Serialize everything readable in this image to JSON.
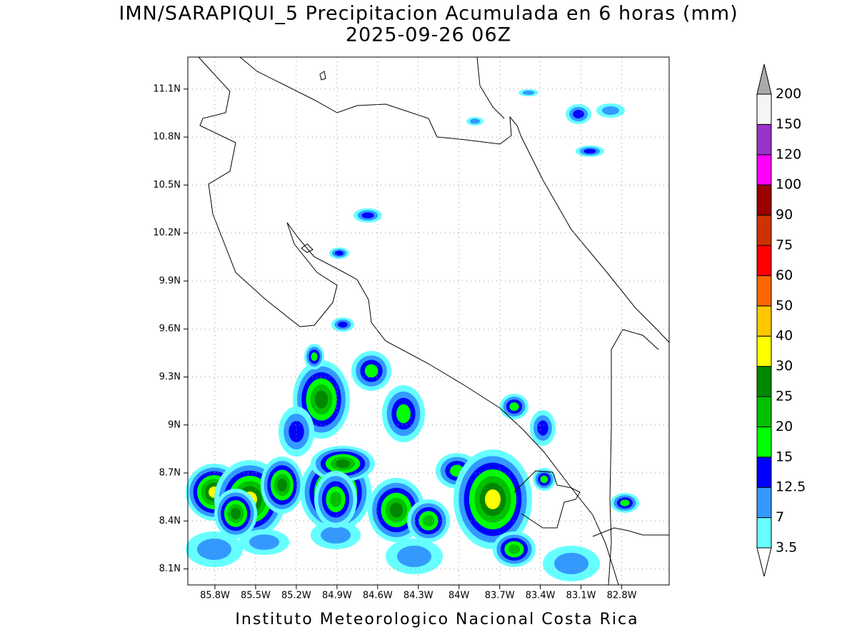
{
  "title": "IMN/SARAPIQUI_5 Precipitacion Acumulada en 6 horas (mm)",
  "subtitle": "2025-09-26 06Z",
  "footer": "Instituto Meteorologico Nacional Costa Rica",
  "map": {
    "lonlim": [
      -86.0,
      -82.45
    ],
    "latlim": [
      8.0,
      11.3
    ],
    "lat_ticks": [
      {
        "value": 11.1,
        "label": "11.1N"
      },
      {
        "value": 10.8,
        "label": "10.8N"
      },
      {
        "value": 10.5,
        "label": "10.5N"
      },
      {
        "value": 10.2,
        "label": "10.2N"
      },
      {
        "value": 9.9,
        "label": "9.9N"
      },
      {
        "value": 9.6,
        "label": "9.6N"
      },
      {
        "value": 9.3,
        "label": "9.3N"
      },
      {
        "value": 9,
        "label": "9N"
      },
      {
        "value": 8.7,
        "label": "8.7N"
      },
      {
        "value": 8.4,
        "label": "8.4N"
      },
      {
        "value": 8.1,
        "label": "8.1N"
      }
    ],
    "lon_ticks": [
      {
        "value": -85.8,
        "label": "85.8W"
      },
      {
        "value": -85.5,
        "label": "85.5W"
      },
      {
        "value": -85.2,
        "label": "85.2W"
      },
      {
        "value": -84.9,
        "label": "84.9W"
      },
      {
        "value": -84.6,
        "label": "84.6W"
      },
      {
        "value": -84.3,
        "label": "84.3W"
      },
      {
        "value": -84,
        "label": "84W"
      },
      {
        "value": -83.7,
        "label": "83.7W"
      },
      {
        "value": -83.4,
        "label": "83.4W"
      },
      {
        "value": -83.1,
        "label": "83.1W"
      },
      {
        "value": -82.8,
        "label": "82.8W"
      }
    ],
    "grid": true
  },
  "legend": {
    "levels": [
      3.5,
      7,
      12.5,
      15,
      20,
      25,
      30,
      40,
      50,
      60,
      75,
      90,
      100,
      120,
      150,
      200
    ],
    "colors": [
      "#ffffff",
      "#66ffff",
      "#3399ff",
      "#0000ff",
      "#00ff00",
      "#00c000",
      "#008800",
      "#ffff00",
      "#ffc800",
      "#ff6600",
      "#ff0000",
      "#cc3300",
      "#990000",
      "#ff00ff",
      "#9933cc",
      "#f5f5f5",
      "#aaaaaa"
    ]
  }
}
